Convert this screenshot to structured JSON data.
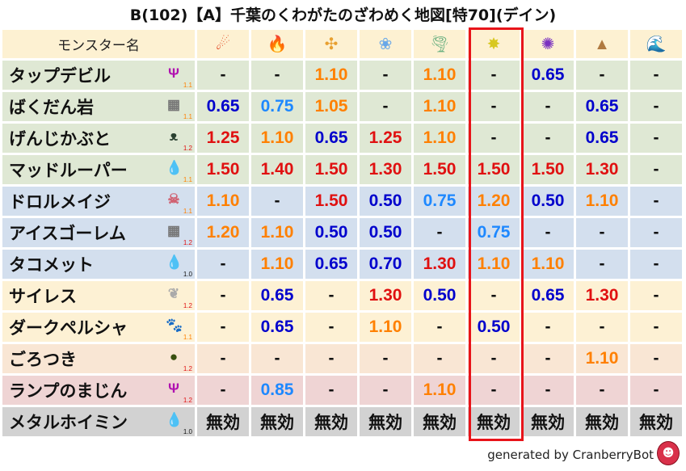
{
  "title": "B(102)【A】千葉のくわがたのざわめく地図[特70](デイン)",
  "header": {
    "name_label": "モンスター名",
    "elements": [
      {
        "icon": "fireball-icon",
        "glyph": "☄",
        "color": "#e0401a"
      },
      {
        "icon": "flame-icon",
        "glyph": "🔥",
        "color": "#ff5a1a"
      },
      {
        "icon": "explosion-icon",
        "glyph": "✣",
        "color": "#e8a030"
      },
      {
        "icon": "ice-icon",
        "glyph": "❀",
        "color": "#6aa8e8"
      },
      {
        "icon": "wind-icon",
        "glyph": "🌪",
        "color": "#6ab080"
      },
      {
        "icon": "lightning-icon",
        "glyph": "✸",
        "color": "#d8c820"
      },
      {
        "icon": "darkness-icon",
        "glyph": "✺",
        "color": "#7a30c0"
      },
      {
        "icon": "earth-icon",
        "glyph": "▲",
        "color": "#b07a40"
      },
      {
        "icon": "water-icon",
        "glyph": "🌊",
        "color": "#2060c0"
      }
    ]
  },
  "highlighted_column": 5,
  "value_colors": {
    "high": "#e01010",
    "mid": "#ff8000",
    "low": "#1e88ff",
    "verylow": "#0000cc",
    "none": "#111111"
  },
  "rows": [
    {
      "name": "タップデビル",
      "icon": "trident-icon",
      "glyph": "Ψ",
      "icon_color": "#b010b0",
      "mult": "1.1",
      "bg": "#dfe8d4",
      "values": [
        "-",
        "-",
        "1.10",
        "-",
        "1.10",
        "-",
        "0.65",
        "-",
        "-"
      ]
    },
    {
      "name": "ばくだん岩",
      "icon": "brick-icon",
      "glyph": "▦",
      "icon_color": "#777",
      "mult": "1.1",
      "bg": "#dfe8d4",
      "values": [
        "0.65",
        "0.75",
        "1.05",
        "-",
        "1.10",
        "-",
        "-",
        "0.65",
        "-"
      ]
    },
    {
      "name": "げんじかぶと",
      "icon": "bug-icon",
      "glyph": "ᴥ",
      "icon_color": "#2a4030",
      "mult": "1.2",
      "bg": "#dfe8d4",
      "values": [
        "1.25",
        "1.10",
        "0.65",
        "1.25",
        "1.10",
        "-",
        "-",
        "0.65",
        "-"
      ]
    },
    {
      "name": "マッドルーパー",
      "icon": "water-drop-icon",
      "glyph": "💧",
      "icon_color": "#2a80d0",
      "mult": "1.1",
      "bg": "#dfe8d4",
      "values": [
        "1.50",
        "1.40",
        "1.50",
        "1.30",
        "1.50",
        "1.50",
        "1.50",
        "1.30",
        "-"
      ]
    },
    {
      "name": "ドロルメイジ",
      "icon": "skull-icon",
      "glyph": "☠",
      "icon_color": "#d06070",
      "mult": "1.1",
      "bg": "#d3dfee",
      "values": [
        "1.10",
        "-",
        "1.50",
        "0.50",
        "0.75",
        "1.20",
        "0.50",
        "1.10",
        "-"
      ]
    },
    {
      "name": "アイスゴーレム",
      "icon": "brick-icon",
      "glyph": "▦",
      "icon_color": "#777",
      "mult": "1.2",
      "bg": "#d3dfee",
      "values": [
        "1.20",
        "1.10",
        "0.50",
        "0.50",
        "-",
        "0.75",
        "-",
        "-",
        "-"
      ]
    },
    {
      "name": "タコメット",
      "icon": "water-drop-icon",
      "glyph": "💧",
      "icon_color": "#2a80d0",
      "mult": "1.0",
      "bg": "#d3dfee",
      "values": [
        "-",
        "1.10",
        "0.65",
        "0.70",
        "1.30",
        "1.10",
        "1.10",
        "-",
        "-"
      ]
    },
    {
      "name": "サイレス",
      "icon": "wing-icon",
      "glyph": "❦",
      "icon_color": "#aaa",
      "mult": "1.2",
      "bg": "#fdf1d4",
      "values": [
        "-",
        "0.65",
        "-",
        "1.30",
        "0.50",
        "-",
        "0.65",
        "1.30",
        "-"
      ]
    },
    {
      "name": "ダークペルシャ",
      "icon": "paw-icon",
      "glyph": "🐾",
      "icon_color": "#e08020",
      "mult": "1.1",
      "bg": "#fdf1d4",
      "values": [
        "-",
        "0.65",
        "-",
        "1.10",
        "-",
        "0.50",
        "-",
        "-",
        "-"
      ]
    },
    {
      "name": "ごろつき",
      "icon": "hooded-icon",
      "glyph": "●",
      "icon_color": "#3a5010",
      "mult": "1.2",
      "bg": "#f9e6d4",
      "values": [
        "-",
        "-",
        "-",
        "-",
        "-",
        "-",
        "-",
        "1.10",
        "-"
      ]
    },
    {
      "name": "ランプのまじん",
      "icon": "trident-icon",
      "glyph": "Ψ",
      "icon_color": "#b010b0",
      "mult": "1.2",
      "bg": "#efd4d4",
      "values": [
        "-",
        "0.85",
        "-",
        "-",
        "1.10",
        "-",
        "-",
        "-",
        "-"
      ]
    },
    {
      "name": "メタルホイミン",
      "icon": "slime-icon",
      "glyph": "💧",
      "icon_color": "#3a90d0",
      "mult": "1.0",
      "bg": "#d2d2d2",
      "values": [
        "無効",
        "無効",
        "無効",
        "無効",
        "無効",
        "無効",
        "無効",
        "無効",
        "無効"
      ]
    }
  ],
  "footer": {
    "text": "generated by CranberryBot",
    "icon": "cranberry-bot-icon"
  }
}
